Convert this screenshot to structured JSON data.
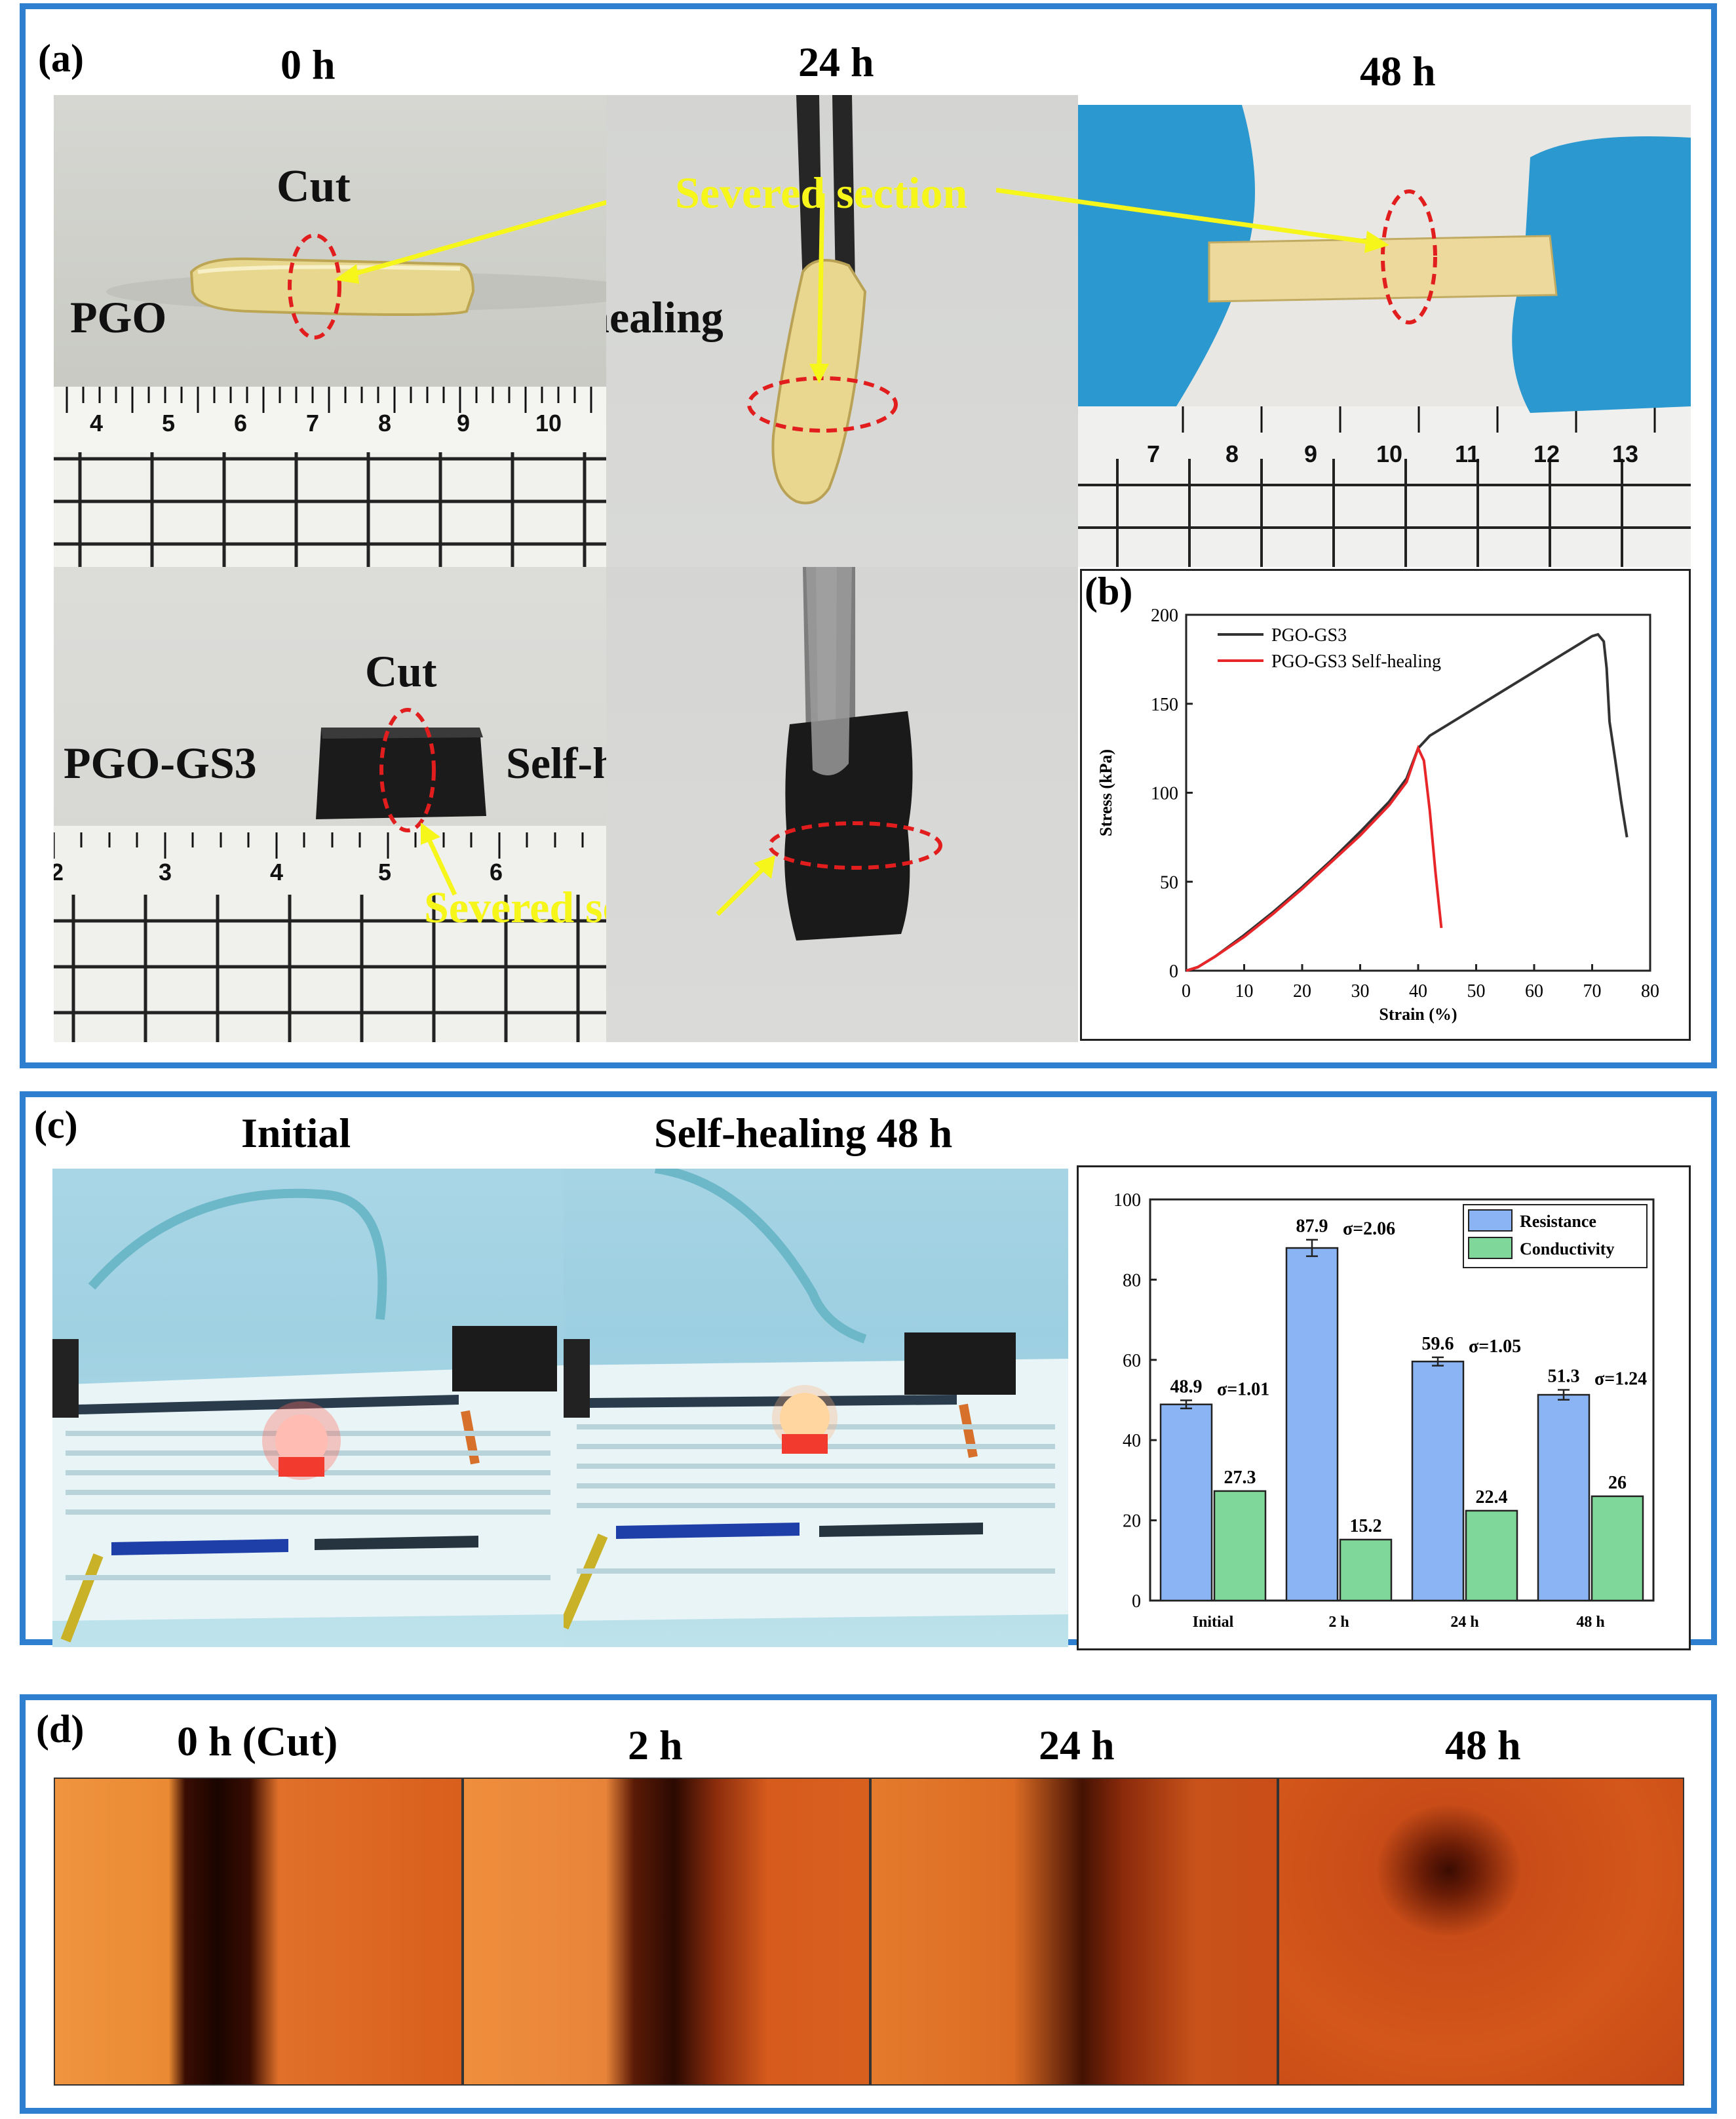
{
  "panels": {
    "a": {
      "label": "(a)",
      "time_0": "0 h",
      "time_24": "24 h",
      "time_48": "48 h",
      "cut_top": "Cut",
      "severed_top": "Severed section",
      "pgo": "PGO",
      "selfheal_top": "Self-healing",
      "cut_bottom": "Cut",
      "pgo_gs3": "PGO-GS3",
      "selfheal_bottom": "Self-healing",
      "severed_bottom": "Severed section",
      "ruler1": [
        "4",
        "5",
        "6",
        "7",
        "8",
        "9",
        "10"
      ],
      "ruler2": [
        "7",
        "8",
        "9",
        "10",
        "11",
        "12",
        "13"
      ],
      "ruler3": [
        "2",
        "3",
        "4",
        "5",
        "6"
      ]
    },
    "b": {
      "label": "(b)"
    },
    "c": {
      "label": "(c)",
      "initial": "Initial",
      "selfheal48": "Self-healing 48 h"
    },
    "d": {
      "label": "(d)",
      "times": [
        "0 h (Cut)",
        "2 h",
        "24 h",
        "48 h"
      ]
    }
  },
  "chart_data": [
    {
      "type": "line",
      "xlabel": "Strain (%)",
      "ylabel": "Stress (kPa)",
      "xlim": [
        0,
        80
      ],
      "ylim": [
        0,
        200
      ],
      "xticks": [
        0,
        10,
        20,
        30,
        40,
        50,
        60,
        70,
        80
      ],
      "yticks": [
        0,
        50,
        100,
        150,
        200
      ],
      "legend": "top-left",
      "series": [
        {
          "name": "PGO-GS3",
          "color": "#333333",
          "x": [
            0,
            2,
            5,
            10,
            15,
            20,
            25,
            30,
            35,
            38,
            40,
            42,
            45,
            50,
            55,
            60,
            65,
            70,
            71,
            72,
            72.5,
            73,
            74,
            75,
            76
          ],
          "y": [
            0,
            2,
            8,
            20,
            33,
            47,
            62,
            78,
            95,
            108,
            125,
            132,
            138,
            148,
            158,
            168,
            178,
            188,
            189,
            185,
            170,
            140,
            118,
            95,
            75
          ]
        },
        {
          "name": "PGO-GS3 Self-healing",
          "color": "#e8262a",
          "x": [
            0,
            2,
            5,
            10,
            15,
            20,
            25,
            30,
            35,
            38,
            40,
            41,
            42,
            43,
            44
          ],
          "y": [
            0,
            2,
            8,
            19,
            32,
            46,
            61,
            76,
            93,
            106,
            125,
            118,
            90,
            55,
            24
          ]
        }
      ]
    },
    {
      "type": "bar",
      "categories": [
        "Initial",
        "2 h",
        "24 h",
        "48 h"
      ],
      "ylim": [
        0,
        100
      ],
      "yticks": [
        0,
        20,
        40,
        60,
        80,
        100
      ],
      "legend": "top-right",
      "series": [
        {
          "name": "Resistance",
          "color": "#8ab4f4",
          "values": [
            48.9,
            87.9,
            59.6,
            51.3
          ],
          "error": [
            1.01,
            2.06,
            1.05,
            1.24
          ],
          "sigma_labels": [
            "σ=1.01",
            "σ=2.06",
            "σ=1.05",
            "σ=1.24"
          ]
        },
        {
          "name": "Conductivity",
          "color": "#7fd89a",
          "values": [
            27.3,
            15.2,
            22.4,
            26
          ]
        }
      ]
    }
  ]
}
